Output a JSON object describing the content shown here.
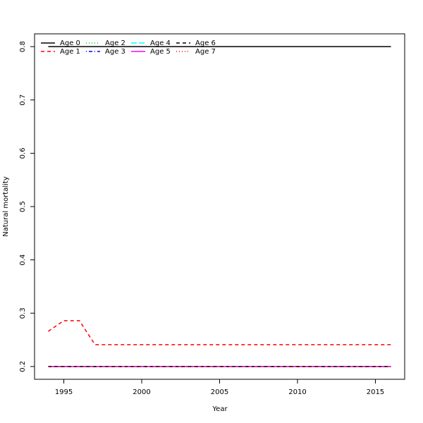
{
  "chart_data": {
    "type": "line",
    "xlabel": "Year",
    "ylabel": "Natural mortality",
    "x": [
      1994,
      1995,
      1996,
      1997,
      1998,
      1999,
      2000,
      2001,
      2002,
      2003,
      2004,
      2005,
      2006,
      2007,
      2008,
      2009,
      2010,
      2011,
      2012,
      2013,
      2014,
      2015,
      2016
    ],
    "series": [
      {
        "name": "Age 0",
        "color": "#000000",
        "values": [
          0.8,
          0.8,
          0.8,
          0.8,
          0.8,
          0.8,
          0.8,
          0.8,
          0.8,
          0.8,
          0.8,
          0.8,
          0.8,
          0.8,
          0.8,
          0.8,
          0.8,
          0.8,
          0.8,
          0.8,
          0.8,
          0.8,
          0.8
        ]
      },
      {
        "name": "Age 1",
        "color": "#ff0000",
        "values": [
          0.266,
          0.286,
          0.286,
          0.241,
          0.241,
          0.241,
          0.241,
          0.241,
          0.241,
          0.241,
          0.241,
          0.241,
          0.241,
          0.241,
          0.241,
          0.241,
          0.241,
          0.241,
          0.241,
          0.241,
          0.241,
          0.241,
          0.241
        ]
      },
      {
        "name": "Age 2",
        "color": "#00cd00",
        "values": [
          0.2,
          0.2,
          0.2,
          0.2,
          0.2,
          0.2,
          0.2,
          0.2,
          0.2,
          0.2,
          0.2,
          0.2,
          0.2,
          0.2,
          0.2,
          0.2,
          0.2,
          0.2,
          0.2,
          0.2,
          0.2,
          0.2,
          0.2
        ]
      },
      {
        "name": "Age 3",
        "color": "#0000ff",
        "values": [
          0.2,
          0.2,
          0.2,
          0.2,
          0.2,
          0.2,
          0.2,
          0.2,
          0.2,
          0.2,
          0.2,
          0.2,
          0.2,
          0.2,
          0.2,
          0.2,
          0.2,
          0.2,
          0.2,
          0.2,
          0.2,
          0.2,
          0.2
        ]
      },
      {
        "name": "Age 4",
        "color": "#00ffff",
        "values": [
          0.2,
          0.2,
          0.2,
          0.2,
          0.2,
          0.2,
          0.2,
          0.2,
          0.2,
          0.2,
          0.2,
          0.2,
          0.2,
          0.2,
          0.2,
          0.2,
          0.2,
          0.2,
          0.2,
          0.2,
          0.2,
          0.2,
          0.2
        ]
      },
      {
        "name": "Age 5",
        "color": "#ff00ff",
        "values": [
          0.2,
          0.2,
          0.2,
          0.2,
          0.2,
          0.2,
          0.2,
          0.2,
          0.2,
          0.2,
          0.2,
          0.2,
          0.2,
          0.2,
          0.2,
          0.2,
          0.2,
          0.2,
          0.2,
          0.2,
          0.2,
          0.2,
          0.2
        ]
      },
      {
        "name": "Age 6",
        "color": "#000000",
        "values": [
          0.2,
          0.2,
          0.2,
          0.2,
          0.2,
          0.2,
          0.2,
          0.2,
          0.2,
          0.2,
          0.2,
          0.2,
          0.2,
          0.2,
          0.2,
          0.2,
          0.2,
          0.2,
          0.2,
          0.2,
          0.2,
          0.2,
          0.2
        ]
      },
      {
        "name": "Age 7",
        "color": "#ff0000",
        "values": [
          0.2,
          0.2,
          0.2,
          0.2,
          0.2,
          0.2,
          0.2,
          0.2,
          0.2,
          0.2,
          0.2,
          0.2,
          0.2,
          0.2,
          0.2,
          0.2,
          0.2,
          0.2,
          0.2,
          0.2,
          0.2,
          0.2,
          0.2
        ]
      }
    ],
    "xlim": [
      1993.12,
      2016.88
    ],
    "xticks": [
      1995,
      2000,
      2005,
      2010,
      2015
    ],
    "ylim": [
      0.176,
      0.824
    ],
    "yticks": [
      0.2,
      0.3,
      0.4,
      0.5,
      0.6,
      0.7,
      0.8
    ],
    "legend": "top-left"
  }
}
